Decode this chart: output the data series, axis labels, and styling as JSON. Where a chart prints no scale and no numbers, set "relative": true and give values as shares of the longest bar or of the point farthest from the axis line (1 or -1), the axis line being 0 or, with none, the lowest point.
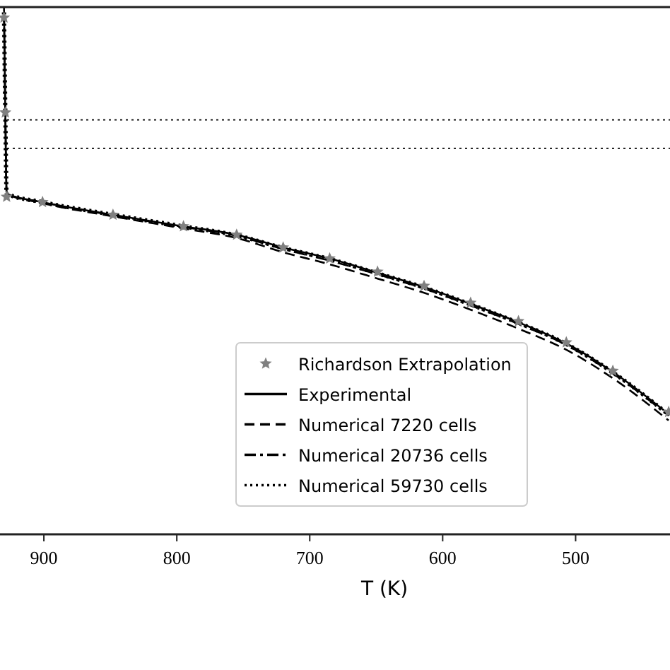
{
  "chart_data": {
    "type": "line",
    "relative": true,
    "xlabel": "T (K)",
    "xlim": [
      933,
      429
    ],
    "xticks": [
      900,
      800,
      700,
      600,
      500
    ],
    "tick_labels": "x",
    "grid": false,
    "legend": "bottom",
    "x": [
      930,
      929,
      928,
      901,
      848,
      795,
      755,
      720,
      685,
      649,
      614,
      579,
      543,
      507,
      472,
      430
    ],
    "series": [
      {
        "name": "Richardson Extrapolation",
        "type": "scatter",
        "color": "#808080",
        "marker": "star",
        "values": [
          0.98,
          0.8,
          0.64,
          0.63,
          0.606,
          0.584,
          0.568,
          0.544,
          0.523,
          0.498,
          0.471,
          0.439,
          0.404,
          0.364,
          0.31,
          0.232
        ]
      },
      {
        "name": "Experimental",
        "color": "#000000",
        "line_style": "solid",
        "values": [
          1.0,
          0.8,
          0.646,
          0.63,
          0.606,
          0.584,
          0.568,
          0.544,
          0.523,
          0.496,
          0.469,
          0.437,
          0.402,
          0.362,
          0.308,
          0.228
        ]
      },
      {
        "name": "Numerical 7220 cells",
        "color": "#000000",
        "line_style": "dashed",
        "values": [
          0.99,
          0.8,
          0.646,
          0.628,
          0.603,
          0.58,
          0.562,
          0.535,
          0.512,
          0.485,
          0.458,
          0.426,
          0.39,
          0.35,
          0.296,
          0.216
        ]
      },
      {
        "name": "Numerical 20736 cells",
        "color": "#000000",
        "line_style": "dashdot",
        "values": [
          0.99,
          0.8,
          0.646,
          0.63,
          0.605,
          0.583,
          0.566,
          0.541,
          0.519,
          0.493,
          0.466,
          0.434,
          0.399,
          0.359,
          0.305,
          0.225
        ]
      },
      {
        "name": "Numerical 59730 cells",
        "color": "#000000",
        "line_style": "dotted",
        "values": [
          0.99,
          0.8,
          0.646,
          0.63,
          0.606,
          0.584,
          0.567,
          0.543,
          0.522,
          0.495,
          0.468,
          0.436,
          0.401,
          0.361,
          0.307,
          0.227
        ]
      }
    ],
    "ref_lines": [
      {
        "axis": "y",
        "value": 0.786,
        "color": "#000000",
        "line_style": "dotted"
      },
      {
        "axis": "y",
        "value": 0.732,
        "color": "#000000",
        "line_style": "dotted"
      }
    ]
  }
}
